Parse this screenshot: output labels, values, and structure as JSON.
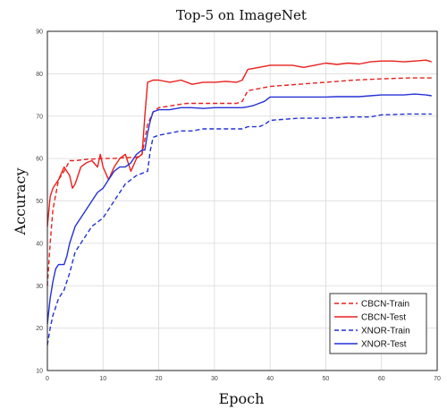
{
  "chart_data": {
    "type": "line",
    "title": "Top-5 on ImageNet",
    "xlabel": "Epoch",
    "ylabel": "Accuracy",
    "xlim": [
      0,
      70
    ],
    "ylim": [
      10,
      90
    ],
    "xticks": [
      0,
      10,
      20,
      30,
      40,
      50,
      60,
      70
    ],
    "yticks": [
      10,
      20,
      30,
      40,
      50,
      60,
      70,
      80,
      90
    ],
    "grid": true,
    "legend_position": "bottom-right",
    "series": [
      {
        "name": "CBCN-Train",
        "color": "#e8201d",
        "dash": "dashed",
        "points": [
          [
            0,
            30
          ],
          [
            0.5,
            40
          ],
          [
            1,
            48
          ],
          [
            2,
            55
          ],
          [
            3,
            57
          ],
          [
            4,
            59.5
          ],
          [
            5,
            59.5
          ],
          [
            7,
            59.8
          ],
          [
            10,
            60
          ],
          [
            12,
            60
          ],
          [
            14,
            60.2
          ],
          [
            16,
            60.3
          ],
          [
            17,
            61
          ],
          [
            18,
            68
          ],
          [
            19,
            71
          ],
          [
            20,
            72
          ],
          [
            25,
            73
          ],
          [
            30,
            73
          ],
          [
            34,
            73
          ],
          [
            35,
            73.5
          ],
          [
            36,
            76
          ],
          [
            40,
            77
          ],
          [
            45,
            77.5
          ],
          [
            50,
            78
          ],
          [
            55,
            78.5
          ],
          [
            60,
            78.8
          ],
          [
            65,
            79
          ],
          [
            69,
            79
          ]
        ]
      },
      {
        "name": "CBCN-Test",
        "color": "#e8201d",
        "dash": "solid",
        "points": [
          [
            0,
            44
          ],
          [
            0.5,
            51
          ],
          [
            1,
            53
          ],
          [
            2,
            55
          ],
          [
            3,
            58
          ],
          [
            4,
            56
          ],
          [
            4.5,
            53
          ],
          [
            5,
            54
          ],
          [
            6,
            58
          ],
          [
            7,
            59
          ],
          [
            8,
            59.5
          ],
          [
            9,
            58
          ],
          [
            9.5,
            61
          ],
          [
            10,
            58
          ],
          [
            11,
            55
          ],
          [
            12,
            58
          ],
          [
            13,
            60
          ],
          [
            14,
            61
          ],
          [
            15,
            57
          ],
          [
            16,
            60
          ],
          [
            17,
            61
          ],
          [
            17.5,
            70
          ],
          [
            18,
            78
          ],
          [
            19,
            78.5
          ],
          [
            20,
            78.5
          ],
          [
            22,
            78
          ],
          [
            24,
            78.5
          ],
          [
            26,
            77.5
          ],
          [
            28,
            78
          ],
          [
            30,
            78
          ],
          [
            32,
            78.2
          ],
          [
            34,
            78
          ],
          [
            35,
            78.5
          ],
          [
            36,
            81
          ],
          [
            38,
            81.5
          ],
          [
            40,
            82
          ],
          [
            42,
            82
          ],
          [
            44,
            82
          ],
          [
            46,
            81.5
          ],
          [
            48,
            82
          ],
          [
            50,
            82.5
          ],
          [
            52,
            82.2
          ],
          [
            54,
            82.5
          ],
          [
            56,
            82.3
          ],
          [
            58,
            82.8
          ],
          [
            60,
            83
          ],
          [
            62,
            83
          ],
          [
            64,
            82.8
          ],
          [
            66,
            83
          ],
          [
            68,
            83.2
          ],
          [
            69,
            82.8
          ]
        ]
      },
      {
        "name": "XNOR-Train",
        "color": "#2431d6",
        "dash": "dashed",
        "points": [
          [
            0,
            16
          ],
          [
            0.5,
            20
          ],
          [
            1,
            23
          ],
          [
            2,
            27
          ],
          [
            3,
            29
          ],
          [
            4,
            33
          ],
          [
            5,
            38
          ],
          [
            6,
            40
          ],
          [
            7,
            42
          ],
          [
            8,
            44
          ],
          [
            9,
            45
          ],
          [
            10,
            46
          ],
          [
            11,
            48
          ],
          [
            12,
            50
          ],
          [
            13,
            52
          ],
          [
            14,
            54
          ],
          [
            15,
            55
          ],
          [
            16,
            56
          ],
          [
            17,
            56.5
          ],
          [
            18,
            57
          ],
          [
            18.5,
            62
          ],
          [
            19,
            65
          ],
          [
            20,
            65.5
          ],
          [
            22,
            66
          ],
          [
            24,
            66.5
          ],
          [
            26,
            66.5
          ],
          [
            28,
            67
          ],
          [
            30,
            67
          ],
          [
            32,
            67
          ],
          [
            34,
            67
          ],
          [
            35,
            67
          ],
          [
            36,
            67.5
          ],
          [
            38,
            67.5
          ],
          [
            39,
            68
          ],
          [
            40,
            69
          ],
          [
            45,
            69.5
          ],
          [
            50,
            69.5
          ],
          [
            55,
            69.8
          ],
          [
            58,
            69.8
          ],
          [
            60,
            70.3
          ],
          [
            65,
            70.5
          ],
          [
            69,
            70.5
          ]
        ]
      },
      {
        "name": "XNOR-Test",
        "color": "#2431d6",
        "dash": "solid",
        "points": [
          [
            0,
            21
          ],
          [
            0.5,
            27
          ],
          [
            1,
            31
          ],
          [
            1.5,
            34
          ],
          [
            2,
            35
          ],
          [
            3,
            35
          ],
          [
            3.5,
            37
          ],
          [
            4,
            40
          ],
          [
            5,
            44
          ],
          [
            6,
            46
          ],
          [
            7,
            48
          ],
          [
            8,
            50
          ],
          [
            9,
            52
          ],
          [
            10,
            53
          ],
          [
            11,
            55
          ],
          [
            12,
            57
          ],
          [
            13,
            58
          ],
          [
            14,
            58
          ],
          [
            15,
            59
          ],
          [
            16,
            61
          ],
          [
            17,
            62
          ],
          [
            17.5,
            62
          ],
          [
            18,
            66
          ],
          [
            18.5,
            69
          ],
          [
            19,
            71
          ],
          [
            20,
            71.5
          ],
          [
            22,
            71.5
          ],
          [
            24,
            72
          ],
          [
            26,
            72
          ],
          [
            28,
            71.8
          ],
          [
            30,
            72
          ],
          [
            32,
            72
          ],
          [
            34,
            72
          ],
          [
            35,
            72
          ],
          [
            36,
            72.2
          ],
          [
            37,
            72.5
          ],
          [
            38,
            73
          ],
          [
            39,
            73.5
          ],
          [
            40,
            74.5
          ],
          [
            42,
            74.5
          ],
          [
            44,
            74.5
          ],
          [
            46,
            74.5
          ],
          [
            48,
            74.5
          ],
          [
            50,
            74.5
          ],
          [
            52,
            74.6
          ],
          [
            54,
            74.6
          ],
          [
            56,
            74.6
          ],
          [
            58,
            74.8
          ],
          [
            60,
            75
          ],
          [
            62,
            75
          ],
          [
            64,
            75
          ],
          [
            66,
            75.2
          ],
          [
            68,
            75
          ],
          [
            69,
            74.8
          ]
        ]
      }
    ]
  }
}
